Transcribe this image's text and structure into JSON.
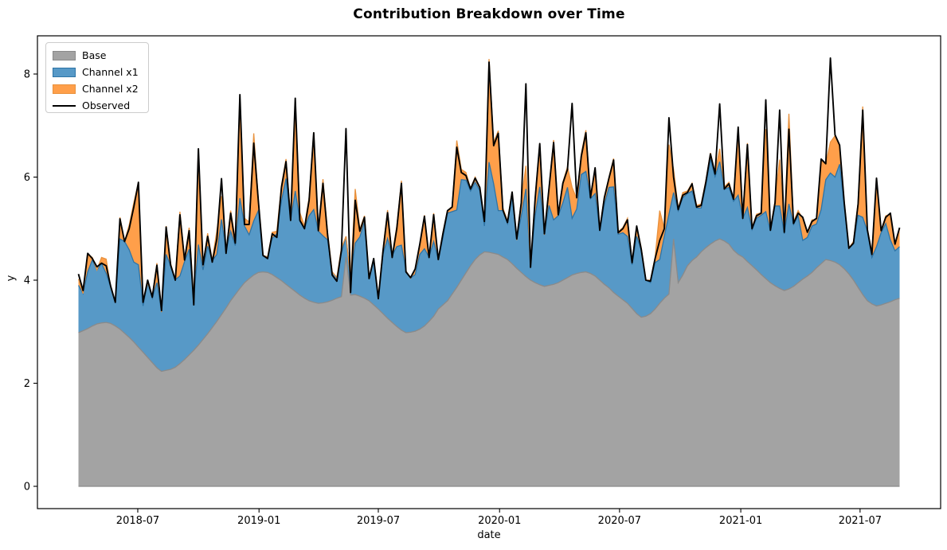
{
  "title": "Contribution Breakdown over Time",
  "axes": {
    "xlabel": "date",
    "ylabel": "y",
    "y_ticks": [
      "0",
      "2",
      "4",
      "6",
      "8"
    ],
    "x_ticks": [
      {
        "label": "2018-07",
        "date": "2018-07-01"
      },
      {
        "label": "2019-01",
        "date": "2019-01-01"
      },
      {
        "label": "2019-07",
        "date": "2019-07-01"
      },
      {
        "label": "2020-01",
        "date": "2020-01-01"
      },
      {
        "label": "2020-07",
        "date": "2020-07-01"
      },
      {
        "label": "2021-01",
        "date": "2021-01-01"
      },
      {
        "label": "2021-07",
        "date": "2021-07-01"
      }
    ]
  },
  "legend": {
    "items": [
      {
        "label": "Base",
        "type": "patch",
        "fill": "rgba(128,128,128,0.72)",
        "edge": "#8a8a8a"
      },
      {
        "label": "Channel x1",
        "type": "patch",
        "fill": "rgba(31,119,180,0.75)",
        "edge": "#2e74a6"
      },
      {
        "label": "Channel x2",
        "type": "patch",
        "fill": "rgba(255,127,14,0.75)",
        "edge": "#e8913d"
      },
      {
        "label": "Observed",
        "type": "line",
        "color": "#000000"
      }
    ]
  },
  "chart_data": {
    "type": "area",
    "stacked": true,
    "title": "Contribution Breakdown over Time",
    "xlabel": "date",
    "ylabel": "y",
    "legend_position": "upper left",
    "grid": false,
    "x_start_date": "2018-04-02",
    "x_end_date": "2021-08-30",
    "freq_days": 7,
    "n_points": 179,
    "y_tick_range": [
      0,
      8
    ],
    "series": [
      {
        "name": "Base",
        "role": "stack",
        "values": [
          2.98,
          3.02,
          3.06,
          3.11,
          3.15,
          3.17,
          3.18,
          3.16,
          3.11,
          3.05,
          2.97,
          2.89,
          2.8,
          2.7,
          2.6,
          2.5,
          2.4,
          2.3,
          2.23,
          2.25,
          2.27,
          2.31,
          2.38,
          2.46,
          2.55,
          2.64,
          2.74,
          2.85,
          2.96,
          3.08,
          3.2,
          3.33,
          3.46,
          3.6,
          3.72,
          3.84,
          3.95,
          4.03,
          4.1,
          4.15,
          4.16,
          4.15,
          4.11,
          4.05,
          3.99,
          3.92,
          3.85,
          3.78,
          3.71,
          3.65,
          3.6,
          3.57,
          3.55,
          3.56,
          3.58,
          3.61,
          3.65,
          3.68,
          4.45,
          3.71,
          3.72,
          3.69,
          3.65,
          3.6,
          3.52,
          3.44,
          3.35,
          3.26,
          3.18,
          3.1,
          3.03,
          2.98,
          2.99,
          3.01,
          3.05,
          3.11,
          3.2,
          3.3,
          3.44,
          3.52,
          3.6,
          3.73,
          3.86,
          4.0,
          4.14,
          4.28,
          4.4,
          4.49,
          4.55,
          4.54,
          4.52,
          4.5,
          4.45,
          4.4,
          4.32,
          4.23,
          4.15,
          4.07,
          4.0,
          3.95,
          3.91,
          3.88,
          3.9,
          3.92,
          3.95,
          4.0,
          4.05,
          4.1,
          4.13,
          4.15,
          4.16,
          4.13,
          4.08,
          4.0,
          3.92,
          3.85,
          3.76,
          3.69,
          3.62,
          3.55,
          3.45,
          3.35,
          3.28,
          3.3,
          3.35,
          3.44,
          3.55,
          3.65,
          3.73,
          4.8,
          3.95,
          4.1,
          4.28,
          4.38,
          4.45,
          4.55,
          4.63,
          4.7,
          4.76,
          4.8,
          4.76,
          4.7,
          4.58,
          4.5,
          4.45,
          4.36,
          4.28,
          4.2,
          4.11,
          4.03,
          3.95,
          3.89,
          3.84,
          3.8,
          3.83,
          3.88,
          3.95,
          4.02,
          4.08,
          4.15,
          4.24,
          4.32,
          4.4,
          4.38,
          4.35,
          4.3,
          4.22,
          4.12,
          4.0,
          3.86,
          3.72,
          3.6,
          3.54,
          3.5,
          3.52,
          3.55,
          3.58,
          3.62,
          3.65
        ]
      },
      {
        "name": "Channel x1",
        "role": "stack",
        "values": [
          0.92,
          0.72,
          1.1,
          1.28,
          1.05,
          1.15,
          0.95,
          0.7,
          0.46,
          1.75,
          1.78,
          1.7,
          1.55,
          1.6,
          0.9,
          1.45,
          1.25,
          1.65,
          1.15,
          2.25,
          2.0,
          1.7,
          1.7,
          1.9,
          2.05,
          1.0,
          1.95,
          1.35,
          1.7,
          1.3,
          1.3,
          1.85,
          1.1,
          1.35,
          0.95,
          1.75,
          1.1,
          0.85,
          1.05,
          1.2,
          0.32,
          0.3,
          0.7,
          0.85,
          1.55,
          2.05,
          1.3,
          1.95,
          1.45,
          1.35,
          1.65,
          1.8,
          1.4,
          1.3,
          1.2,
          0.55,
          0.4,
          0.85,
          0.4,
          0.3,
          1.0,
          1.15,
          1.48,
          0.45,
          0.85,
          0.25,
          1.15,
          1.55,
          1.3,
          1.55,
          1.65,
          1.2,
          1.05,
          1.1,
          1.45,
          1.5,
          1.25,
          1.45,
          0.95,
          1.3,
          1.7,
          1.6,
          1.5,
          1.95,
          1.8,
          1.45,
          1.5,
          1.25,
          0.5,
          1.75,
          1.35,
          0.85,
          0.9,
          0.7,
          1.3,
          0.55,
          1.1,
          1.7,
          0.25,
          1.3,
          1.9,
          1.0,
          1.55,
          1.25,
          1.3,
          1.5,
          1.75,
          1.1,
          1.25,
          1.9,
          1.95,
          1.45,
          1.6,
          0.95,
          1.55,
          1.95,
          2.05,
          1.2,
          1.3,
          1.3,
          0.85,
          1.5,
          1.3,
          0.7,
          0.6,
          0.9,
          0.85,
          1.2,
          1.55,
          0.9,
          1.4,
          1.5,
          1.4,
          1.35,
          0.95,
          0.85,
          1.2,
          1.65,
          1.25,
          1.5,
          1.0,
          1.1,
          0.95,
          1.15,
          0.75,
          1.05,
          0.7,
          1.0,
          1.15,
          1.3,
          1.0,
          1.55,
          1.6,
          1.1,
          1.65,
          1.2,
          1.3,
          0.75,
          0.75,
          0.9,
          0.85,
          1.05,
          1.55,
          1.7,
          1.65,
          1.95,
          1.2,
          0.5,
          0.7,
          1.4,
          1.5,
          1.35,
          0.9,
          1.15,
          1.4,
          1.55,
          1.2,
          0.95,
          1.0
        ]
      },
      {
        "name": "Channel x2",
        "role": "stack",
        "values": [
          0.12,
          0.0,
          0.35,
          0.05,
          0.0,
          0.12,
          0.28,
          0.0,
          0.0,
          0.42,
          0.0,
          0.48,
          1.15,
          1.6,
          0.1,
          0.0,
          0.05,
          0.38,
          0.0,
          0.55,
          0.05,
          0.0,
          1.25,
          0.05,
          0.42,
          0.0,
          1.85,
          0.1,
          0.25,
          0.0,
          0.46,
          0.45,
          0.0,
          0.4,
          0.12,
          1.9,
          0.15,
          0.25,
          1.7,
          0.2,
          0.0,
          0.0,
          0.12,
          0.05,
          0.3,
          0.38,
          0.05,
          1.75,
          0.15,
          0.05,
          0.35,
          1.5,
          0.05,
          1.1,
          0.15,
          0.0,
          0.0,
          0.1,
          0.0,
          0.0,
          1.05,
          0.15,
          0.12,
          0.0,
          0.05,
          0.0,
          0.1,
          0.55,
          0.0,
          0.4,
          1.25,
          0.0,
          0.0,
          0.1,
          0.2,
          0.65,
          0.0,
          0.55,
          0.0,
          0.1,
          0.05,
          0.1,
          1.35,
          0.2,
          0.15,
          0.05,
          0.1,
          0.05,
          0.1,
          2.0,
          0.8,
          1.55,
          0.05,
          0.05,
          0.1,
          0.0,
          0.3,
          0.45,
          0.0,
          0.35,
          0.85,
          0.0,
          0.35,
          1.55,
          0.05,
          0.4,
          0.4,
          0.6,
          0.2,
          0.4,
          0.8,
          0.05,
          0.5,
          0.05,
          0.15,
          0.2,
          0.55,
          0.05,
          0.1,
          0.35,
          0.05,
          0.2,
          0.05,
          0.0,
          0.05,
          0.1,
          0.95,
          0.15,
          1.35,
          0.45,
          0.05,
          0.1,
          0.05,
          0.15,
          0.05,
          0.08,
          0.1,
          0.12,
          0.08,
          0.25,
          0.05,
          0.1,
          0.05,
          1.3,
          0.05,
          1.25,
          0.05,
          0.08,
          0.05,
          1.6,
          0.05,
          0.1,
          0.9,
          0.05,
          1.75,
          0.05,
          0.1,
          0.42,
          0.1,
          0.12,
          0.08,
          0.95,
          0.3,
          0.6,
          0.8,
          0.35,
          0.1,
          0.0,
          0.05,
          0.25,
          2.15,
          0.05,
          0.1,
          1.3,
          0.05,
          0.15,
          0.5,
          0.1,
          0.35
        ]
      },
      {
        "name": "Observed",
        "role": "line",
        "values": [
          4.12,
          3.8,
          4.52,
          4.42,
          4.26,
          4.33,
          4.28,
          3.88,
          3.57,
          5.19,
          4.75,
          5.0,
          5.42,
          5.9,
          3.57,
          4.0,
          3.67,
          4.29,
          3.41,
          5.03,
          4.29,
          4.0,
          5.27,
          4.39,
          4.96,
          3.52,
          6.55,
          4.3,
          4.85,
          4.35,
          4.8,
          5.97,
          4.52,
          5.3,
          4.72,
          7.6,
          5.08,
          5.08,
          6.66,
          5.53,
          4.48,
          4.42,
          4.9,
          4.83,
          5.8,
          6.3,
          5.16,
          7.53,
          5.16,
          5.0,
          5.55,
          6.86,
          4.96,
          5.88,
          4.88,
          4.1,
          3.98,
          4.58,
          6.94,
          3.76,
          5.55,
          4.95,
          5.22,
          4.03,
          4.42,
          3.64,
          4.55,
          5.31,
          4.44,
          5.0,
          5.88,
          4.16,
          4.05,
          4.22,
          4.7,
          5.24,
          4.44,
          5.27,
          4.4,
          4.9,
          5.35,
          5.42,
          6.58,
          6.09,
          6.03,
          5.77,
          5.98,
          5.8,
          5.14,
          8.23,
          6.61,
          6.85,
          5.36,
          5.12,
          5.71,
          4.8,
          5.5,
          7.81,
          4.25,
          5.58,
          6.65,
          4.9,
          5.78,
          6.67,
          5.27,
          5.88,
          6.15,
          7.43,
          5.6,
          6.4,
          6.86,
          5.6,
          6.18,
          4.97,
          5.6,
          5.98,
          6.33,
          4.92,
          5.0,
          5.17,
          4.34,
          5.05,
          4.6,
          4.0,
          3.98,
          4.42,
          4.77,
          5.0,
          7.15,
          6.0,
          5.37,
          5.65,
          5.7,
          5.87,
          5.42,
          5.45,
          5.9,
          6.45,
          6.06,
          7.42,
          5.77,
          5.87,
          5.57,
          6.97,
          5.2,
          6.63,
          5.0,
          5.25,
          5.3,
          7.5,
          4.97,
          5.5,
          7.3,
          4.93,
          6.93,
          5.1,
          5.3,
          5.22,
          4.93,
          5.14,
          5.2,
          6.35,
          6.26,
          8.31,
          6.82,
          6.62,
          5.5,
          4.62,
          4.72,
          5.48,
          7.3,
          4.98,
          4.5,
          5.98,
          4.96,
          5.22,
          5.3,
          4.7,
          5.02
        ]
      }
    ]
  }
}
